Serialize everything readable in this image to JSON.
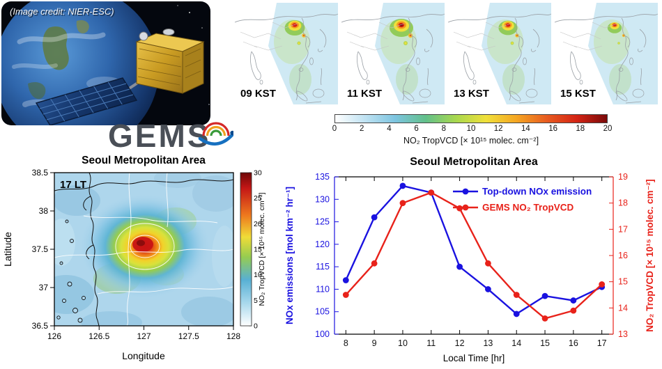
{
  "satellite_panel": {
    "credit": "(Image credit: NIER-ESC)",
    "logo_text": "GEMS"
  },
  "kst_maps": {
    "panels": [
      {
        "label": "09 KST",
        "intensity": 0.85
      },
      {
        "label": "11 KST",
        "intensity": 1.0
      },
      {
        "label": "13 KST",
        "intensity": 0.8
      },
      {
        "label": "15 KST",
        "intensity": 0.6
      }
    ],
    "colorbar": {
      "ticks": [
        "0",
        "2",
        "4",
        "6",
        "8",
        "10",
        "12",
        "14",
        "16",
        "18",
        "20"
      ],
      "label": "NO₂ TropVCD [× 10¹⁵ molec. cm⁻²]",
      "stops": [
        "#ffffff",
        "#bfe2f2",
        "#7cc4e0",
        "#62c08a",
        "#a8d84e",
        "#f0e03a",
        "#f5a622",
        "#e85c20",
        "#d42414",
        "#7a0a0a"
      ]
    }
  },
  "chart_data": [
    {
      "type": "heatmap",
      "title": "Seoul Metropolitan Area",
      "annotation": "17 LT",
      "xlabel": "Longitude",
      "ylabel": "Latitude",
      "xlim": [
        126,
        128
      ],
      "ylim": [
        36.5,
        38.5
      ],
      "xticks": [
        "126",
        "126.5",
        "127",
        "127.5",
        "128"
      ],
      "yticks": [
        "38.5",
        "38",
        "37.5",
        "37",
        "36.5"
      ],
      "colorbar": {
        "lim": [
          0,
          30
        ],
        "ticks": [
          "0",
          "5",
          "10",
          "15",
          "20",
          "25",
          "30"
        ],
        "label": "NO₂ TropVCD [× 10¹⁵ molec. cm⁻²]"
      },
      "peak": {
        "lon": 127.05,
        "lat": 37.5,
        "value_approx": 30
      }
    },
    {
      "type": "line",
      "title": "Seoul Metropolitan Area",
      "xlabel": "Local Time [hr]",
      "x": [
        8,
        9,
        10,
        11,
        12,
        13,
        14,
        15,
        16,
        17
      ],
      "series": [
        {
          "name": "Top-down NOx emission",
          "axis": "left",
          "color": "#1a12e0",
          "values": [
            112,
            126,
            133,
            131.5,
            115,
            110,
            104.5,
            108.5,
            107.5,
            110.5
          ]
        },
        {
          "name": "GEMS NO₂ TropVCD",
          "axis": "right",
          "color": "#e8221a",
          "values": [
            14.5,
            15.7,
            18.0,
            18.4,
            17.8,
            15.7,
            14.5,
            13.6,
            13.9,
            14.9
          ]
        }
      ],
      "left_axis": {
        "label": "NOx emissions [mol km⁻² hr⁻¹]",
        "ylim": [
          100,
          135
        ],
        "ticks": [
          100,
          105,
          110,
          115,
          120,
          125,
          130,
          135
        ],
        "color": "#1a12e0"
      },
      "right_axis": {
        "label": "NO₂ TropVCD [× 10¹⁵ molec. cm⁻²]",
        "ylim": [
          13,
          19
        ],
        "ticks": [
          13,
          14,
          15,
          16,
          17,
          18,
          19
        ],
        "color": "#e8221a"
      },
      "legend": {
        "position": "top-right",
        "entries": [
          "Top-down NOx emission",
          "GEMS NO₂ TropVCD"
        ]
      },
      "grid": false
    }
  ],
  "colors": {
    "nox_blue": "#1a12e0",
    "no2_red": "#e8221a",
    "fov_blue": "#cfe9f4",
    "map_base_blue": "#aed6ec",
    "hotspot_red": "#d41e14"
  }
}
